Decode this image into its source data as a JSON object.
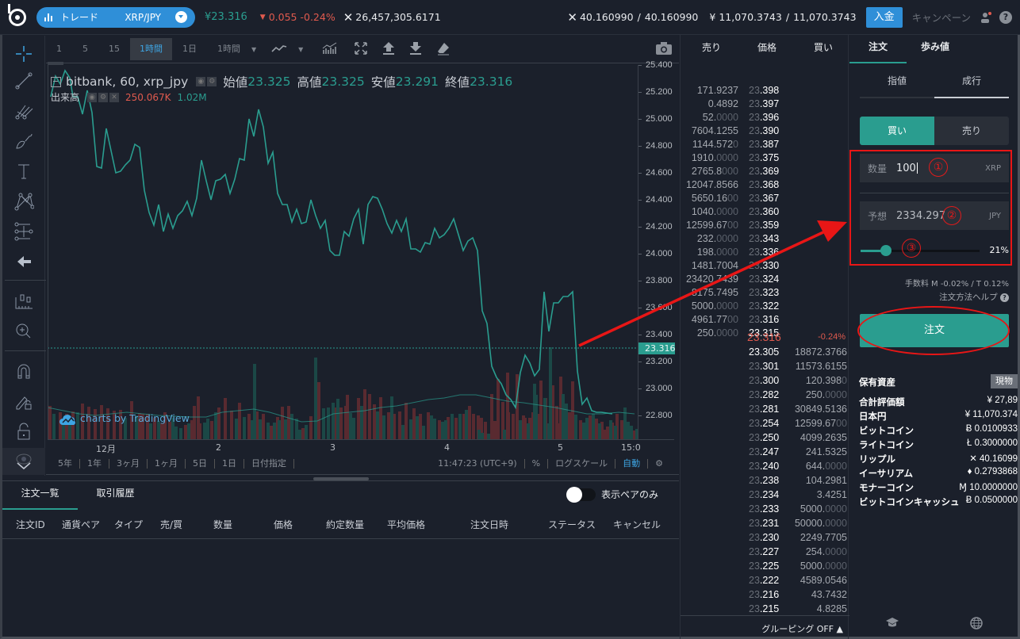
{
  "topbar": {
    "mode_label": "トレード",
    "pair": "XRP/JPY",
    "price": "¥23.316",
    "change": "0.055",
    "change_pct": "-0.24%",
    "volume": "26,457,305.6171",
    "xrp_balance": "40.160990",
    "xrp_available": "40.160990",
    "jpy_balance": "¥ 11,070.3743",
    "jpy_available": "11,070.3743",
    "deposit_label": "入金",
    "campaign_label": "キャンペーン",
    "help_label": "?"
  },
  "chart_toolbar": {
    "timeframes": [
      "1",
      "5",
      "15",
      "1時間",
      "1日"
    ],
    "active_timeframe": "1時間",
    "interval_dropdown": "1時間"
  },
  "legend": {
    "symbol": "bitbank, 60, xrp_jpy",
    "open_label": "始値",
    "open": "23.325",
    "high_label": "高値",
    "high": "23.325",
    "low_label": "安値",
    "low": "23.291",
    "close_label": "終値",
    "close": "23.316",
    "volume_label": "出来高",
    "volume_val": "250.067K",
    "volume_ma": "1.02M"
  },
  "price_axis": {
    "ticks": [
      "25.400",
      "25.200",
      "25.000",
      "24.800",
      "24.600",
      "24.400",
      "24.200",
      "24.000",
      "23.800",
      "23.600",
      "23.400",
      "23.200",
      "23.000",
      "22.800"
    ],
    "current": "23.316"
  },
  "time_axis": {
    "ticks": [
      "12月",
      "2",
      "3",
      "4",
      "5",
      "15:0"
    ]
  },
  "range_bar": {
    "ranges": [
      "5年",
      "1年",
      "3ヶ月",
      "1ヶ月",
      "5日",
      "1日",
      "日付指定"
    ],
    "clock": "11:47:23 (UTC+9)",
    "percent": "%",
    "log": "ログスケール",
    "auto": "自動"
  },
  "branding": "charts by TradingView",
  "orders": {
    "tabs": [
      "注文一覧",
      "取引履歴"
    ],
    "toggle_label": "表示ペアのみ",
    "columns": [
      "注文ID",
      "通貨ペア",
      "タイプ",
      "売/買",
      "数量",
      "価格",
      "約定数量",
      "平均価格",
      "注文日時",
      "ステータス",
      "キャンセル"
    ]
  },
  "orderbook": {
    "headers": {
      "sell": "売り",
      "price": "価格",
      "buy": "買い"
    },
    "asks": [
      {
        "amt": "171.9237",
        "px": "23.398"
      },
      {
        "amt": "0.4892",
        "px": "23.397"
      },
      {
        "amt": "52.0000",
        "px": "23.396"
      },
      {
        "amt": "7604.1255",
        "px": "23.390"
      },
      {
        "amt": "1144.5720",
        "px": "23.387"
      },
      {
        "amt": "1910.0000",
        "px": "23.375"
      },
      {
        "amt": "2765.8000",
        "px": "23.369"
      },
      {
        "amt": "12047.8566",
        "px": "23.368"
      },
      {
        "amt": "5650.1600",
        "px": "23.367"
      },
      {
        "amt": "1040.0000",
        "px": "23.360"
      },
      {
        "amt": "12599.6700",
        "px": "23.359"
      },
      {
        "amt": "232.0000",
        "px": "23.343"
      },
      {
        "amt": "198.0000",
        "px": "23.336"
      },
      {
        "amt": "1481.7004",
        "px": "23.330"
      },
      {
        "amt": "23420.7439",
        "px": "23.324"
      },
      {
        "amt": "8175.7495",
        "px": "23.323"
      },
      {
        "amt": "5000.0000",
        "px": "23.322"
      },
      {
        "amt": "4961.7700",
        "px": "23.316"
      },
      {
        "amt": "250.0000",
        "px": "23.315"
      }
    ],
    "last_price": "23.316",
    "last_change": "-0.24%",
    "bids": [
      {
        "px": "23.305",
        "amt": "18872.3766"
      },
      {
        "px": "23.301",
        "amt": "11573.6155"
      },
      {
        "px": "23.300",
        "amt": "120.3980"
      },
      {
        "px": "23.282",
        "amt": "250.0000"
      },
      {
        "px": "23.281",
        "amt": "30849.5136"
      },
      {
        "px": "23.254",
        "amt": "12599.6700"
      },
      {
        "px": "23.250",
        "amt": "4099.2635"
      },
      {
        "px": "23.247",
        "amt": "241.5325"
      },
      {
        "px": "23.240",
        "amt": "644.0000"
      },
      {
        "px": "23.238",
        "amt": "104.2981"
      },
      {
        "px": "23.234",
        "amt": "3.4251"
      },
      {
        "px": "23.233",
        "amt": "5000.0000"
      },
      {
        "px": "23.231",
        "amt": "50000.0000"
      },
      {
        "px": "23.230",
        "amt": "2249.7705"
      },
      {
        "px": "23.227",
        "amt": "254.0000"
      },
      {
        "px": "23.225",
        "amt": "5000.0000"
      },
      {
        "px": "23.222",
        "amt": "4589.0546"
      },
      {
        "px": "23.216",
        "amt": "43.7432"
      },
      {
        "px": "23.215",
        "amt": "4.8285"
      }
    ],
    "grouping": "グルーピング OFF"
  },
  "panel": {
    "tabs": [
      "注文",
      "歩み値"
    ],
    "order_types": [
      "指値",
      "成行"
    ],
    "buy_label": "買い",
    "sell_label": "売り",
    "qty_label": "数量",
    "qty_value": "100",
    "qty_unit": "XRP",
    "est_label": "予想",
    "est_value": "2334.297",
    "est_unit": "JPY",
    "slider_pct": "21%",
    "fee": "手数料 M -0.02% / T 0.12%",
    "help": "注文方法ヘルプ",
    "order_button": "注文",
    "annotations": [
      "①",
      "②",
      "③"
    ],
    "assets_title": "保有資産",
    "spot_badge": "現物",
    "assets": [
      {
        "name": "合計評価額",
        "value": "¥ 27,89"
      },
      {
        "name": "日本円",
        "value": "¥ 11,070.374"
      },
      {
        "name": "ビットコイン",
        "value": "Ƀ 0.0100933"
      },
      {
        "name": "ライトコイン",
        "value": "Ł 0.3000000"
      },
      {
        "name": "リップル",
        "value": "✕ 40.16099"
      },
      {
        "name": "イーサリアム",
        "value": "♦ 0.2793868"
      },
      {
        "name": "モナーコイン",
        "value": "Ɱ 10.0000000"
      },
      {
        "name": "ビットコインキャッシュ",
        "value": "Ƀ 0.0500000"
      }
    ]
  },
  "colors": {
    "accent_teal": "#2a9d8f",
    "accent_blue": "#2f8fd8",
    "down_red": "#e05a4e",
    "annotation_red": "#e81616",
    "background": "#1b202b"
  }
}
